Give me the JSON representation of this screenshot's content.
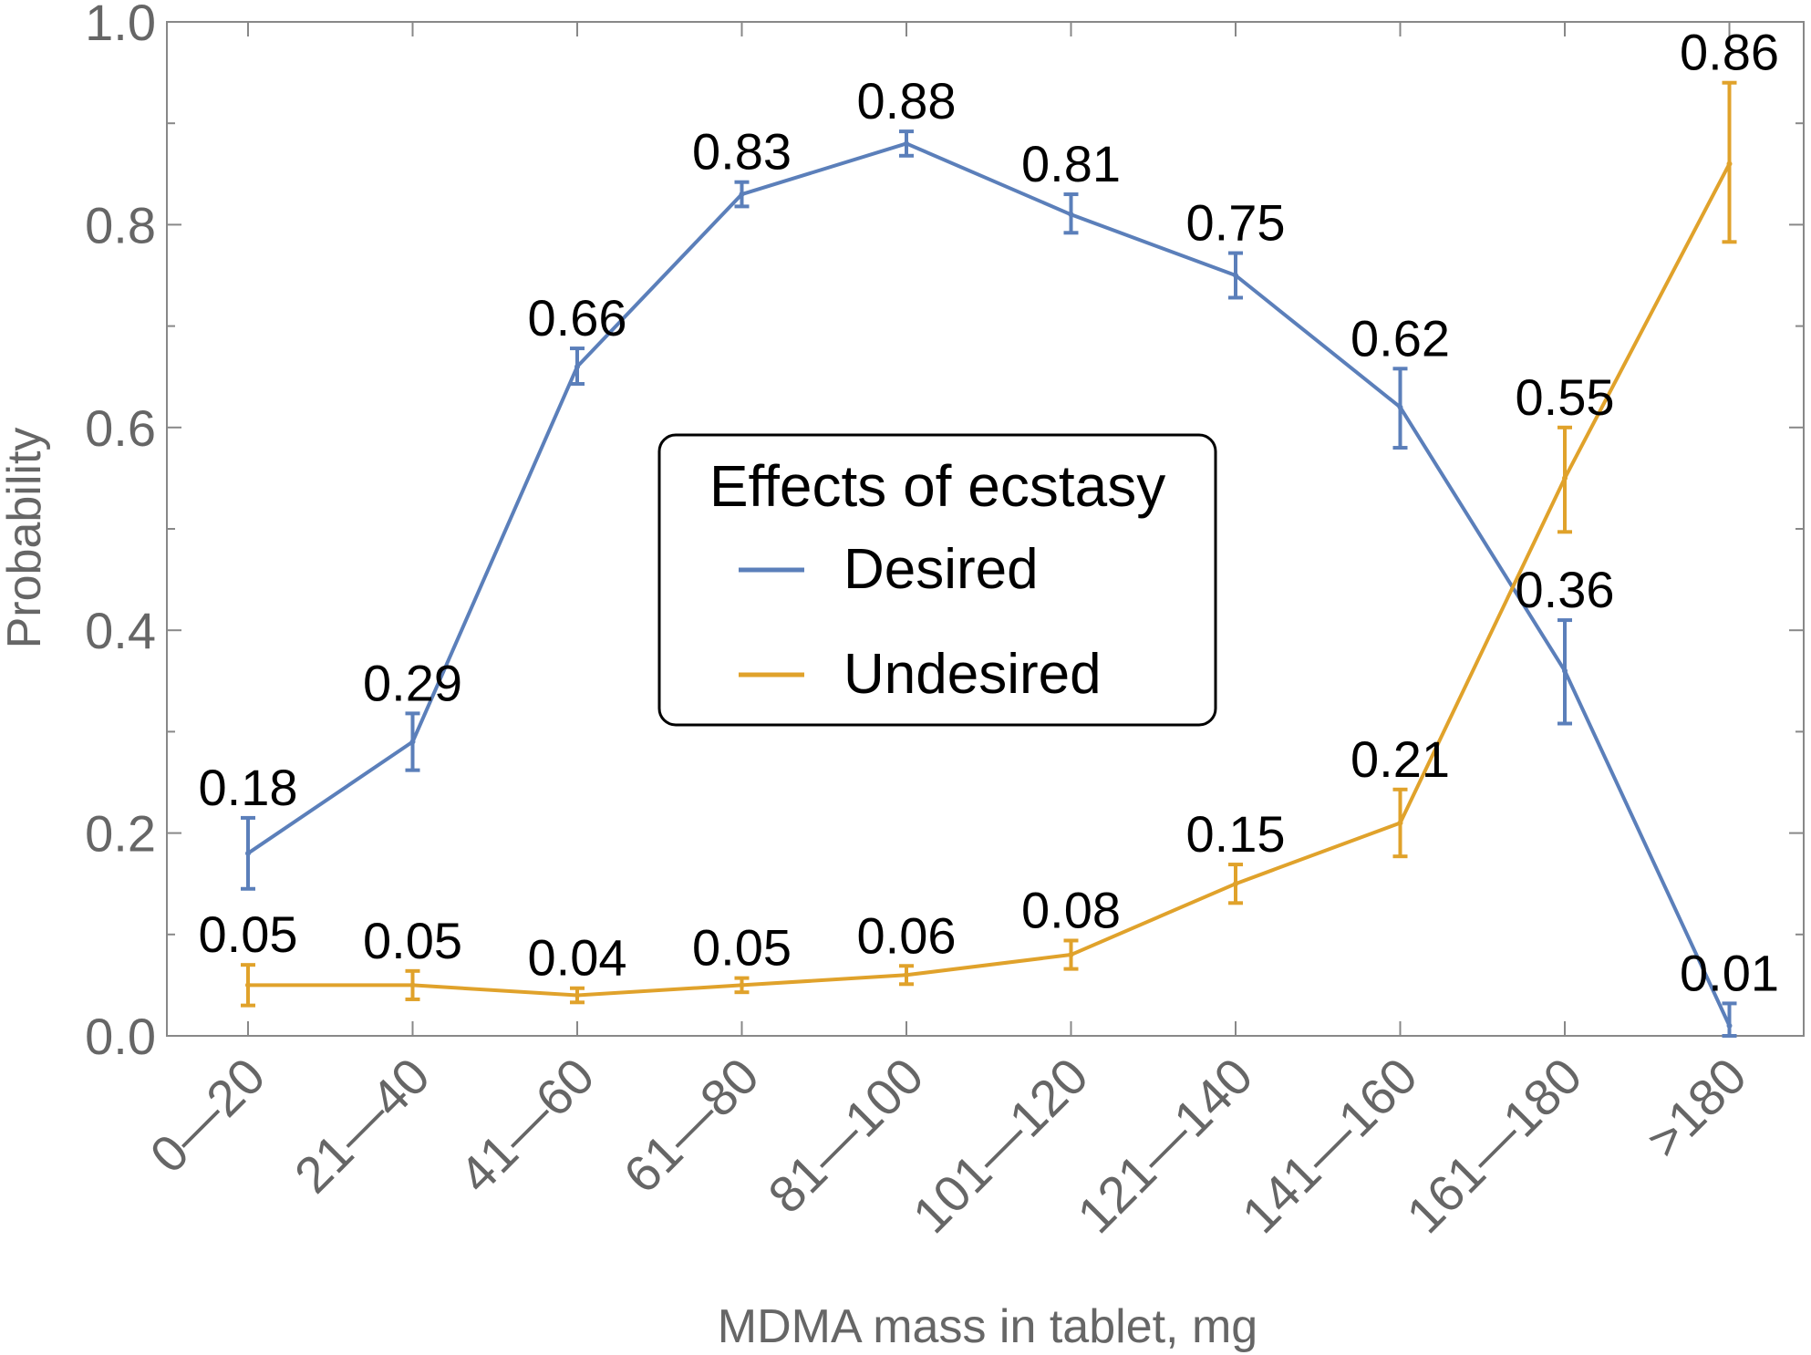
{
  "chart_data": {
    "type": "line",
    "xlabel": "MDMA mass in tablet, mg",
    "ylabel": "Probability",
    "ylim": [
      0,
      1
    ],
    "yticks": [
      "0.0",
      "0.2",
      "0.4",
      "0.6",
      "0.8",
      "1.0"
    ],
    "categories": [
      "0—20",
      "21—40",
      "41—60",
      "61—80",
      "81—100",
      "101—120",
      "121—140",
      "141—160",
      "161—180",
      ">180"
    ],
    "legend": {
      "title": "Effects of ecstasy",
      "position": "center"
    },
    "grid": false,
    "series": [
      {
        "name": "Desired",
        "color": "#5b7fba",
        "values": [
          0.18,
          0.29,
          0.66,
          0.83,
          0.88,
          0.81,
          0.75,
          0.62,
          0.36,
          0.01
        ],
        "labels": [
          "0.18",
          "0.29",
          "0.66",
          "0.83",
          "0.88",
          "0.81",
          "0.75",
          "0.62",
          "0.36",
          "0.01"
        ],
        "error_low": [
          0.145,
          0.262,
          0.643,
          0.818,
          0.868,
          0.792,
          0.728,
          0.58,
          0.308,
          0.0
        ],
        "error_high": [
          0.215,
          0.318,
          0.678,
          0.842,
          0.892,
          0.83,
          0.772,
          0.658,
          0.41,
          0.032
        ]
      },
      {
        "name": "Undesired",
        "color": "#e0a22b",
        "values": [
          0.05,
          0.05,
          0.04,
          0.05,
          0.06,
          0.08,
          0.15,
          0.21,
          0.55,
          0.86
        ],
        "labels": [
          "0.05",
          "0.05",
          "0.04",
          "0.05",
          "0.06",
          "0.08",
          "0.15",
          "0.21",
          "0.55",
          "0.86"
        ],
        "error_low": [
          0.03,
          0.036,
          0.033,
          0.043,
          0.051,
          0.066,
          0.131,
          0.177,
          0.497,
          0.783
        ],
        "error_high": [
          0.07,
          0.064,
          0.047,
          0.057,
          0.069,
          0.094,
          0.169,
          0.243,
          0.6,
          0.94
        ]
      }
    ]
  }
}
